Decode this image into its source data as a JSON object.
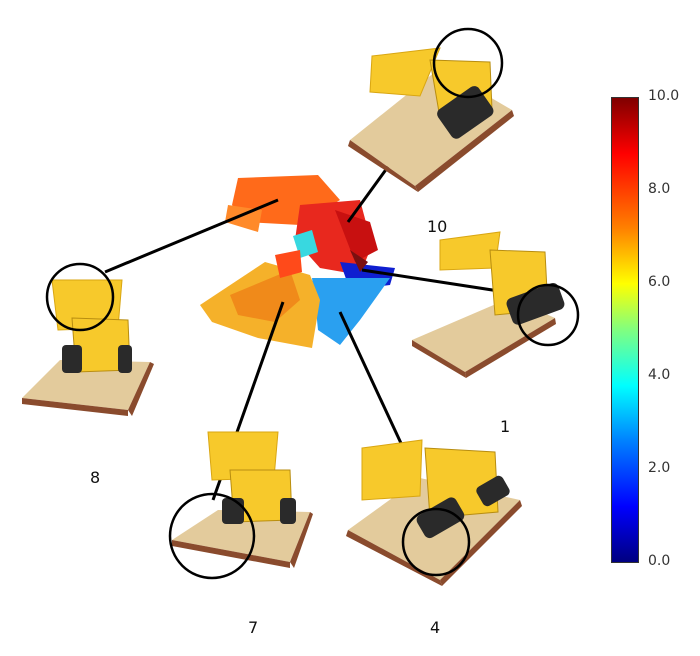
{
  "view_labels": [
    "10",
    "1",
    "8",
    "7",
    "4"
  ],
  "colorbar": {
    "ticks": [
      "10.0",
      "8.0",
      "6.0",
      "4.0",
      "2.0",
      "0.0"
    ],
    "min": 0.0,
    "max": 10.0,
    "colormap": "jet"
  },
  "colors": {
    "lego_yellow": "#f7c92b",
    "lego_tan": "#e3cb9c",
    "lego_brown": "#8a4b2d",
    "lego_dark": "#333333"
  }
}
